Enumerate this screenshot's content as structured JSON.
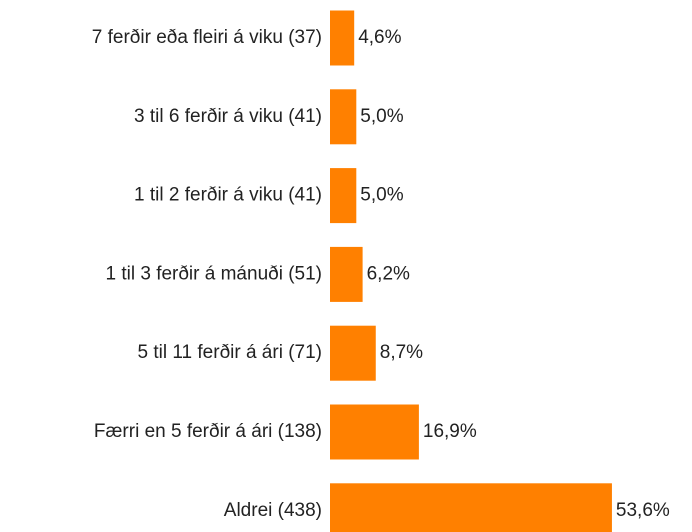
{
  "chart_data": {
    "type": "bar",
    "orientation": "horizontal",
    "categories": [
      "7 ferðir eða fleiri á viku (37)",
      "3 til 6 ferðir á viku (41)",
      "1 til 2 ferðir á viku (41)",
      "1 til 3 ferðir á mánuði (51)",
      "5 til 11 ferðir á ári (71)",
      "Færri en 5 ferðir á ári (138)",
      "Aldrei (438)"
    ],
    "values": [
      4.6,
      5.0,
      5.0,
      6.2,
      8.7,
      16.9,
      53.6
    ],
    "value_labels": [
      "4,6%",
      "5,0%",
      "5,0%",
      "6,2%",
      "8,7%",
      "16,9%",
      "53,6%"
    ],
    "color": "#ff8000"
  }
}
